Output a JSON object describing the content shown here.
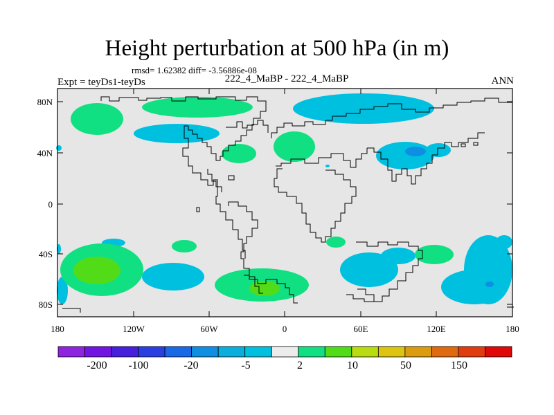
{
  "title": "Height perturbation at 500 hPa (in m)",
  "stats": {
    "rmsd_line": "rmsd= 1.62382 diff= -3.56886e-08"
  },
  "header": {
    "left": "Expt = teyDs1-teyDs",
    "center": "222_4_MaBP - 222_4_MaBP",
    "right": "ANN"
  },
  "map": {
    "lat_ticks": [
      "80N",
      "40N",
      "0",
      "40S",
      "80S"
    ],
    "lon_ticks": [
      "180",
      "120W",
      "60W",
      "0",
      "60E",
      "120E",
      "180"
    ],
    "background_color": "#e6e6e6",
    "coastline_color": "#000000"
  },
  "colorbar": {
    "labels": [
      "-200",
      "-100",
      "-20",
      "-5",
      "2",
      "10",
      "50",
      "150"
    ],
    "colors": [
      "#8f24e0",
      "#7214e2",
      "#4620dc",
      "#2a3fe2",
      "#1869e6",
      "#0f8fe2",
      "#0aaedc",
      "#00c0e0",
      "#ececec",
      "#10e082",
      "#52dc18",
      "#b8dc10",
      "#dcc410",
      "#dc9c10",
      "#e06a10",
      "#e03c10",
      "#e00808"
    ]
  }
}
